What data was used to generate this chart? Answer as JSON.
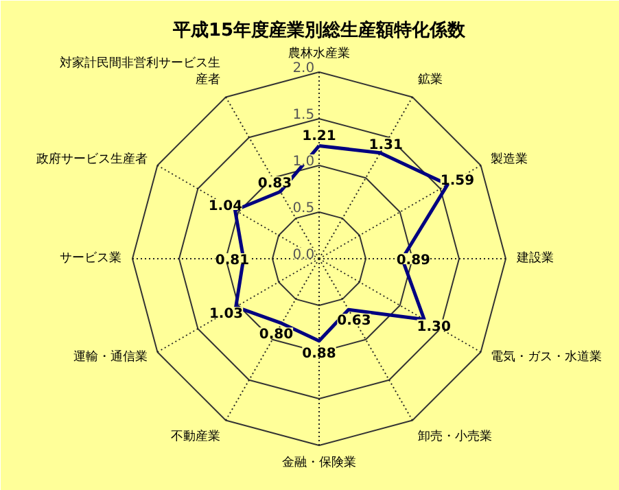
{
  "chart_data": {
    "type": "radar",
    "title": "平成15年度産業別総生産額特化係数",
    "categories": [
      "農林水産業",
      "鉱業",
      "製造業",
      "建設業",
      "電気・ガス・水道業",
      "卸売・小売業",
      "金融・保険業",
      "不動産業",
      "運輸・通信業",
      "サービス業",
      "政府サービス生産者",
      "対家計民間非営利サービス生産者"
    ],
    "series": [
      {
        "color": "#000080",
        "values": [
          1.21,
          1.31,
          1.59,
          0.89,
          1.3,
          0.63,
          0.88,
          0.8,
          1.03,
          0.81,
          1.04,
          0.83
        ],
        "value_labels": [
          "1.21",
          "1.31",
          "1.59",
          "0.89",
          "1.30",
          "0.63",
          "0.88",
          "0.80",
          "1.03",
          "0.81",
          "1.04",
          "0.83"
        ]
      }
    ],
    "ylim": [
      0,
      2.0
    ],
    "yticks": [
      {
        "value": 0,
        "label": "0.0"
      },
      {
        "value": 0.5,
        "label": "0.5"
      },
      {
        "value": 1.0,
        "label": "1.0"
      },
      {
        "value": 1.5,
        "label": "1.5"
      },
      {
        "value": 2.0,
        "label": "2.0"
      }
    ],
    "grid": true
  }
}
